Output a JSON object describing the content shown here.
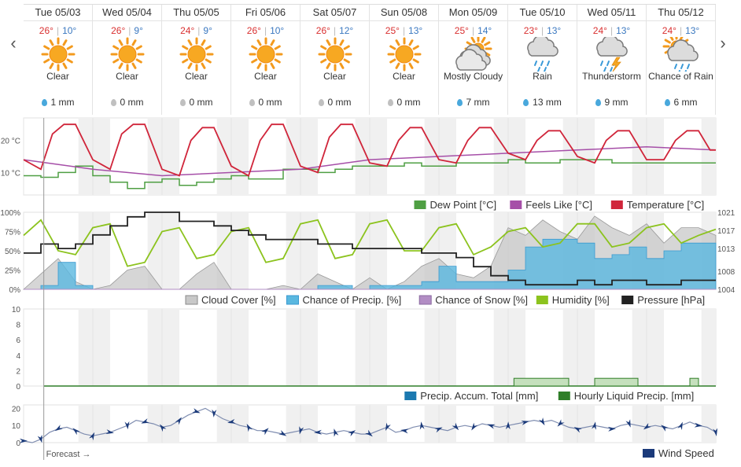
{
  "navigation": {
    "prev_icon": "chevron-left-icon",
    "next_icon": "chevron-right-icon",
    "prev_glyph": "‹",
    "next_glyph": "›"
  },
  "days": [
    {
      "date": "Tue 05/03",
      "high": "26°",
      "low": "10°",
      "condition": "Clear",
      "icon": "sun-icon",
      "precip": "1 mm",
      "precip_wet": true
    },
    {
      "date": "Wed 05/04",
      "high": "26°",
      "low": "9°",
      "condition": "Clear",
      "icon": "sun-icon",
      "precip": "0 mm",
      "precip_wet": false
    },
    {
      "date": "Thu 05/05",
      "high": "24°",
      "low": "9°",
      "condition": "Clear",
      "icon": "sun-icon",
      "precip": "0 mm",
      "precip_wet": false
    },
    {
      "date": "Fri 05/06",
      "high": "26°",
      "low": "10°",
      "condition": "Clear",
      "icon": "sun-icon",
      "precip": "0 mm",
      "precip_wet": false
    },
    {
      "date": "Sat 05/07",
      "high": "26°",
      "low": "12°",
      "condition": "Clear",
      "icon": "sun-icon",
      "precip": "0 mm",
      "precip_wet": false
    },
    {
      "date": "Sun 05/08",
      "high": "25°",
      "low": "13°",
      "condition": "Clear",
      "icon": "sun-icon",
      "precip": "0 mm",
      "precip_wet": false
    },
    {
      "date": "Mon 05/09",
      "high": "25°",
      "low": "14°",
      "condition": "Mostly Cloudy",
      "icon": "mostly-cloudy-icon",
      "precip": "7 mm",
      "precip_wet": true
    },
    {
      "date": "Tue 05/10",
      "high": "23°",
      "low": "13°",
      "condition": "Rain",
      "icon": "rain-icon",
      "precip": "13 mm",
      "precip_wet": true
    },
    {
      "date": "Wed 05/11",
      "high": "24°",
      "low": "13°",
      "condition": "Thunderstorm",
      "icon": "thunderstorm-icon",
      "precip": "9 mm",
      "precip_wet": true
    },
    {
      "date": "Thu 05/12",
      "high": "24°",
      "low": "13°",
      "condition": "Chance of Rain",
      "icon": "chance-of-rain-icon",
      "precip": "6 mm",
      "precip_wet": true
    }
  ],
  "colors": {
    "temperature": "#d0253a",
    "feels_like": "#a64fa8",
    "dew_point": "#4f9f43",
    "cloud_cover": "#c8c8c8",
    "chance_precip": "#5ab8e0",
    "chance_snow": "#b28dc4",
    "humidity": "#8cc31e",
    "pressure": "#222222",
    "precip_total": "#1b79b0",
    "hourly_precip": "#2f7e28",
    "wind": "#1b3a7a",
    "night_band": "#f0f0f0"
  },
  "chart_data": [
    {
      "type": "line",
      "name": "temperature-panel",
      "yticks": [
        "20 °C",
        "10 °C"
      ],
      "ytick_values": [
        20,
        10
      ],
      "ylim": [
        3,
        27
      ],
      "xlim": [
        0,
        240
      ],
      "series": [
        {
          "name": "Dew Point [°C]",
          "key": "dew_point",
          "x": [
            0,
            6,
            12,
            18,
            24,
            30,
            36,
            42,
            48,
            54,
            60,
            66,
            72,
            78,
            84,
            90,
            96,
            102,
            108,
            114,
            120,
            126,
            132,
            138,
            144,
            150,
            156,
            162,
            168,
            174,
            180,
            186,
            192,
            198,
            204,
            210,
            216,
            222,
            228,
            234,
            240
          ],
          "y": [
            9,
            8.5,
            10,
            12,
            9,
            7,
            5,
            7,
            8,
            6,
            7,
            8,
            9,
            8,
            8,
            11,
            11,
            10,
            11,
            12,
            12,
            12,
            13,
            12,
            12,
            13,
            13,
            13,
            14,
            13,
            13,
            14,
            14,
            14,
            13,
            13,
            13,
            13,
            13,
            13,
            13
          ]
        },
        {
          "name": "Feels Like [°C]",
          "key": "feels_like",
          "x": [
            0,
            24,
            48,
            72,
            96,
            120,
            144,
            168,
            192,
            216,
            240
          ],
          "y": [
            14,
            11,
            9,
            10,
            11,
            14,
            15,
            16,
            17,
            18,
            17
          ]
        },
        {
          "name": "Temperature [°C]",
          "key": "temperature",
          "x": [
            0,
            6,
            10,
            14,
            18,
            24,
            30,
            34,
            38,
            42,
            48,
            54,
            58,
            62,
            66,
            72,
            78,
            82,
            86,
            90,
            96,
            102,
            106,
            110,
            114,
            120,
            126,
            130,
            134,
            138,
            144,
            150,
            154,
            158,
            162,
            168,
            174,
            178,
            182,
            186,
            192,
            198,
            202,
            206,
            210,
            216,
            222,
            226,
            230,
            234,
            238,
            240
          ],
          "y": [
            14,
            11,
            22,
            25,
            25,
            14,
            11,
            22,
            25,
            25,
            11,
            9,
            20,
            24,
            24,
            12,
            9,
            20,
            25,
            25,
            12,
            10,
            21,
            25,
            25,
            13,
            12,
            20,
            24,
            24,
            14,
            13,
            20,
            24,
            24,
            16,
            14,
            20,
            23,
            23,
            15,
            13,
            20,
            23,
            23,
            14,
            14,
            20,
            23,
            23,
            17,
            17
          ]
        }
      ]
    },
    {
      "type": "area",
      "name": "cloud-humidity-pressure-panel",
      "yticks_left": [
        "100%",
        "75%",
        "50%",
        "25%",
        "0%"
      ],
      "ytick_values_left": [
        100,
        75,
        50,
        25,
        0
      ],
      "yticks_right": [
        "1021",
        "1017",
        "1013",
        "1008",
        "1004"
      ],
      "ytick_values_right": [
        1021,
        1017,
        1013,
        1008,
        1004
      ],
      "ylim_left": [
        0,
        100
      ],
      "ylim_right": [
        1004,
        1021
      ],
      "xlim": [
        0,
        240
      ],
      "series": [
        {
          "name": "Cloud Cover [%]",
          "key": "cloud_cover",
          "x": [
            0,
            6,
            12,
            18,
            24,
            30,
            36,
            42,
            48,
            54,
            60,
            66,
            72,
            78,
            84,
            90,
            96,
            102,
            108,
            114,
            120,
            126,
            132,
            138,
            144,
            150,
            156,
            162,
            168,
            174,
            180,
            186,
            192,
            198,
            204,
            210,
            216,
            222,
            228,
            234,
            240
          ],
          "y": [
            0,
            20,
            40,
            10,
            0,
            5,
            25,
            30,
            0,
            0,
            20,
            35,
            0,
            0,
            0,
            5,
            0,
            20,
            10,
            0,
            15,
            0,
            10,
            30,
            40,
            20,
            15,
            30,
            80,
            70,
            90,
            75,
            65,
            95,
            80,
            70,
            85,
            60,
            80,
            80,
            70
          ]
        },
        {
          "name": "Chance of Precip. [%]",
          "key": "chance_precip",
          "x": [
            0,
            6,
            12,
            18,
            24,
            30,
            36,
            42,
            48,
            54,
            60,
            66,
            72,
            78,
            84,
            90,
            96,
            102,
            108,
            114,
            120,
            126,
            132,
            138,
            144,
            150,
            156,
            162,
            168,
            174,
            180,
            186,
            192,
            198,
            204,
            210,
            216,
            222,
            228,
            234,
            240
          ],
          "y": [
            0,
            5,
            35,
            5,
            0,
            0,
            0,
            0,
            0,
            0,
            0,
            0,
            0,
            0,
            0,
            0,
            0,
            5,
            5,
            0,
            5,
            5,
            5,
            10,
            30,
            10,
            10,
            10,
            25,
            55,
            65,
            65,
            60,
            40,
            45,
            55,
            40,
            50,
            60,
            60,
            55
          ]
        },
        {
          "name": "Chance of Snow [%]",
          "key": "chance_snow",
          "x": [
            0,
            240
          ],
          "y": [
            0,
            0
          ]
        },
        {
          "name": "Humidity [%]",
          "key": "humidity",
          "x": [
            0,
            6,
            12,
            18,
            24,
            30,
            36,
            42,
            48,
            54,
            60,
            66,
            72,
            78,
            84,
            90,
            96,
            102,
            108,
            114,
            120,
            126,
            132,
            138,
            144,
            150,
            156,
            162,
            168,
            174,
            180,
            186,
            192,
            198,
            204,
            210,
            216,
            222,
            228,
            234,
            240
          ],
          "y": [
            70,
            90,
            50,
            45,
            80,
            85,
            30,
            35,
            75,
            80,
            40,
            45,
            75,
            80,
            35,
            40,
            85,
            90,
            40,
            45,
            85,
            90,
            50,
            50,
            80,
            85,
            45,
            55,
            75,
            80,
            55,
            60,
            85,
            85,
            55,
            60,
            80,
            85,
            60,
            70,
            78
          ]
        },
        {
          "name": "Pressure [hPa]",
          "key": "pressure",
          "axis": "right",
          "x": [
            0,
            6,
            12,
            18,
            24,
            30,
            36,
            42,
            48,
            54,
            60,
            66,
            72,
            78,
            84,
            90,
            96,
            102,
            108,
            114,
            120,
            126,
            132,
            138,
            144,
            150,
            156,
            162,
            168,
            174,
            180,
            186,
            192,
            198,
            204,
            210,
            216,
            222,
            228,
            234,
            240
          ],
          "y": [
            1012,
            1014,
            1013,
            1014,
            1016,
            1018,
            1020,
            1021,
            1021,
            1019,
            1019,
            1018,
            1017,
            1016,
            1015,
            1015,
            1015,
            1014,
            1014,
            1013,
            1013,
            1013,
            1013,
            1012,
            1012,
            1011,
            1009,
            1007,
            1006,
            1005,
            1005,
            1005,
            1006,
            1005,
            1006,
            1006,
            1005,
            1005,
            1006,
            1006,
            1006
          ]
        }
      ]
    },
    {
      "type": "bar",
      "name": "precip-accumulation-panel",
      "yticks": [
        "10",
        "8",
        "6",
        "4",
        "2",
        "0"
      ],
      "ytick_values": [
        10,
        8,
        6,
        4,
        2,
        0
      ],
      "ylim": [
        0,
        10
      ],
      "xlim": [
        0,
        240
      ],
      "series": [
        {
          "name": "Precip. Accum. Total [mm]",
          "key": "precip_total",
          "x": [
            0,
            240
          ],
          "y": [
            0,
            0
          ]
        },
        {
          "name": "Hourly Liquid Precip. [mm]",
          "key": "hourly_precip",
          "segments": [
            {
              "x0": 170,
              "x1": 189,
              "y": 1
            },
            {
              "x0": 198,
              "x1": 213,
              "y": 1
            },
            {
              "x0": 231,
              "x1": 234,
              "y": 1
            }
          ]
        }
      ]
    },
    {
      "type": "line",
      "name": "wind-panel",
      "yticks": [
        "20",
        "10",
        "0"
      ],
      "ytick_values": [
        20,
        10,
        0
      ],
      "ylim": [
        0,
        22
      ],
      "xlim": [
        0,
        240
      ],
      "series": [
        {
          "name": "Wind Speed",
          "key": "wind",
          "x": [
            0,
            3,
            6,
            9,
            12,
            15,
            18,
            21,
            24,
            27,
            30,
            33,
            36,
            39,
            42,
            45,
            48,
            51,
            54,
            57,
            60,
            63,
            66,
            69,
            72,
            75,
            78,
            81,
            84,
            87,
            90,
            93,
            96,
            99,
            102,
            105,
            108,
            111,
            114,
            117,
            120,
            123,
            126,
            129,
            132,
            135,
            138,
            141,
            144,
            147,
            150,
            153,
            156,
            159,
            162,
            165,
            168,
            171,
            174,
            177,
            180,
            183,
            186,
            189,
            192,
            195,
            198,
            201,
            204,
            207,
            210,
            213,
            216,
            219,
            222,
            225,
            228,
            231,
            234,
            237,
            240
          ],
          "y": [
            1,
            0,
            2,
            6,
            8,
            9,
            7,
            5,
            4,
            5,
            6,
            8,
            10,
            13,
            12,
            11,
            9,
            10,
            13,
            16,
            18,
            20,
            17,
            14,
            12,
            10,
            9,
            7,
            7,
            6,
            5,
            6,
            7,
            8,
            6,
            5,
            6,
            7,
            6,
            5,
            5,
            7,
            9,
            6,
            7,
            9,
            10,
            9,
            8,
            7,
            9,
            10,
            9,
            11,
            10,
            9,
            10,
            11,
            12,
            13,
            12,
            13,
            11,
            9,
            8,
            9,
            10,
            9,
            8,
            10,
            11,
            10,
            9,
            10,
            9,
            8,
            10,
            12,
            10,
            9,
            6
          ]
        }
      ]
    }
  ],
  "legends": {
    "temperature_panel": [
      "Dew Point [°C]",
      "Feels Like [°C]",
      "Temperature [°C]"
    ],
    "cloud_panel": [
      "Cloud Cover [%]",
      "Chance of Precip. [%]",
      "Chance of Snow [%]",
      "Humidity [%]",
      "Pressure [hPa]"
    ],
    "precip_panel": [
      "Precip. Accum. Total [mm]",
      "Hourly Liquid Precip. [mm]"
    ],
    "wind_panel": [
      "Wind Speed"
    ]
  },
  "forecast_marker": {
    "label": "Forecast →",
    "hour": 7
  }
}
